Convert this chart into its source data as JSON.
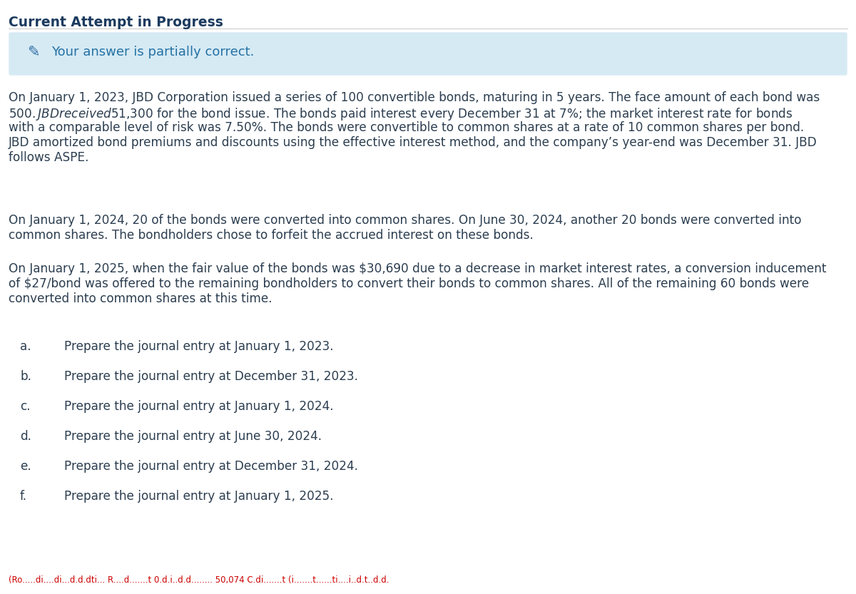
{
  "title": "Current Attempt in Progress",
  "title_color": "#1b3a5e",
  "title_fontsize": 13.5,
  "banner_bg": "#d6eaf4",
  "banner_text": "Your answer is partially correct.",
  "banner_text_color": "#2471a3",
  "banner_fontsize": 13,
  "body_fontsize": 12.2,
  "body_color": "#2c3e50",
  "paragraph1_lines": [
    "On January 1, 2023, JBD Corporation issued a series of 100 convertible bonds, maturing in 5 years. The face amount of each bond was",
    "$500. JBD received $51,300 for the bond issue. The bonds paid interest every December 31 at 7%; the market interest rate for bonds",
    "with a comparable level of risk was 7.50%. The bonds were convertible to common shares at a rate of 10 common shares per bond.",
    "JBD amortized bond premiums and discounts using the effective interest method, and the company’s year-end was December 31. JBD",
    "follows ASPE."
  ],
  "paragraph2_lines": [
    "On January 1, 2024, 20 of the bonds were converted into common shares. On June 30, 2024, another 20 bonds were converted into",
    "common shares. The bondholders chose to forfeit the accrued interest on these bonds."
  ],
  "paragraph3_lines": [
    "On January 1, 2025, when the fair value of the bonds was $30,690 due to a decrease in market interest rates, a conversion inducement",
    "of $27/bond was offered to the remaining bondholders to convert their bonds to common shares. All of the remaining 60 bonds were",
    "converted into common shares at this time."
  ],
  "list_items": [
    [
      "a.",
      "Prepare the journal entry at January 1, 2023."
    ],
    [
      "b.",
      "Prepare the journal entry at December 31, 2023."
    ],
    [
      "c.",
      "Prepare the journal entry at January 1, 2024."
    ],
    [
      "d.",
      "Prepare the journal entry at June 30, 2024."
    ],
    [
      "e.",
      "Prepare the journal entry at December 31, 2024."
    ],
    [
      "f.",
      "Prepare the journal entry at January 1, 2025."
    ]
  ],
  "footer_text": "(Ro.....di....di...d.d.dti... R....d.......t 0.d.i..d.d........ 50,074 C.di.......t (i.......t......ti....i..d.t..d.d.",
  "footer_color": "#cc0000",
  "footer_fontsize": 8.5,
  "bg_color": "#ffffff",
  "divider_color": "#cccccc",
  "pencil_color": "#2e6da4"
}
